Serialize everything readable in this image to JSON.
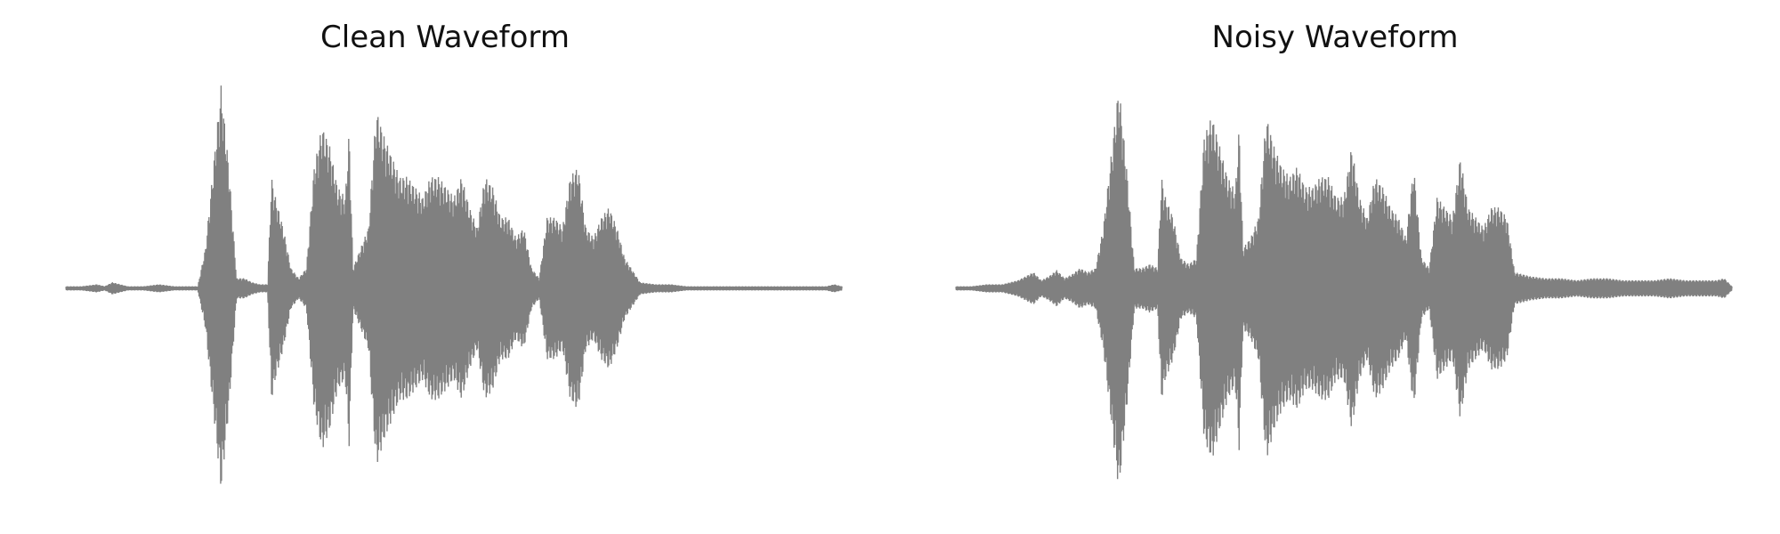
{
  "chart_data": [
    {
      "type": "area",
      "title": "Clean Waveform",
      "xlabel": "",
      "ylabel": "",
      "axis_visible": false,
      "grid": false,
      "color": "#808080",
      "ylim": [
        -1,
        1
      ],
      "series": [
        {
          "x": [
            0.0,
            0.02,
            0.04,
            0.05,
            0.06,
            0.08,
            0.1,
            0.12,
            0.14,
            0.16,
            0.17,
            0.18,
            0.19,
            0.2,
            0.21,
            0.22,
            0.23,
            0.24,
            0.25,
            0.26,
            0.265,
            0.27,
            0.28,
            0.29,
            0.3,
            0.31,
            0.32,
            0.33,
            0.34,
            0.35,
            0.36,
            0.365,
            0.37,
            0.38,
            0.39,
            0.4,
            0.41,
            0.42,
            0.43,
            0.44,
            0.45,
            0.46,
            0.47,
            0.48,
            0.49,
            0.5,
            0.51,
            0.52,
            0.53,
            0.54,
            0.55,
            0.56,
            0.57,
            0.58,
            0.59,
            0.6,
            0.61,
            0.62,
            0.63,
            0.64,
            0.65,
            0.66,
            0.67,
            0.68,
            0.69,
            0.7,
            0.71,
            0.72,
            0.74,
            0.76,
            0.78,
            0.8,
            0.82,
            0.84,
            0.86,
            0.88,
            0.9,
            0.92,
            0.94,
            0.96,
            0.98,
            0.99,
            1.0
          ],
          "envelope": [
            0.01,
            0.01,
            0.02,
            0.01,
            0.03,
            0.01,
            0.01,
            0.02,
            0.01,
            0.01,
            0.01,
            0.2,
            0.6,
            1.0,
            0.6,
            0.05,
            0.05,
            0.03,
            0.02,
            0.02,
            0.55,
            0.45,
            0.3,
            0.1,
            0.05,
            0.1,
            0.6,
            0.8,
            0.7,
            0.5,
            0.45,
            0.78,
            0.1,
            0.2,
            0.3,
            0.88,
            0.75,
            0.65,
            0.55,
            0.55,
            0.5,
            0.45,
            0.55,
            0.55,
            0.5,
            0.45,
            0.55,
            0.4,
            0.3,
            0.55,
            0.5,
            0.35,
            0.35,
            0.25,
            0.3,
            0.1,
            0.05,
            0.35,
            0.35,
            0.3,
            0.55,
            0.6,
            0.3,
            0.25,
            0.35,
            0.4,
            0.3,
            0.15,
            0.03,
            0.02,
            0.02,
            0.01,
            0.01,
            0.01,
            0.01,
            0.01,
            0.01,
            0.01,
            0.01,
            0.01,
            0.01,
            0.02,
            0.01
          ]
        }
      ]
    },
    {
      "type": "area",
      "title": "Noisy Waveform",
      "xlabel": "",
      "ylabel": "",
      "axis_visible": false,
      "grid": false,
      "color": "#808080",
      "ylim": [
        -1,
        1
      ],
      "series": [
        {
          "x": [
            0.0,
            0.02,
            0.04,
            0.06,
            0.08,
            0.09,
            0.1,
            0.11,
            0.12,
            0.13,
            0.14,
            0.15,
            0.16,
            0.17,
            0.18,
            0.19,
            0.2,
            0.21,
            0.22,
            0.23,
            0.24,
            0.25,
            0.26,
            0.265,
            0.27,
            0.28,
            0.29,
            0.3,
            0.31,
            0.32,
            0.33,
            0.34,
            0.35,
            0.36,
            0.365,
            0.37,
            0.38,
            0.39,
            0.4,
            0.41,
            0.42,
            0.43,
            0.44,
            0.45,
            0.46,
            0.47,
            0.48,
            0.49,
            0.5,
            0.51,
            0.52,
            0.53,
            0.54,
            0.55,
            0.56,
            0.57,
            0.58,
            0.59,
            0.6,
            0.61,
            0.62,
            0.63,
            0.64,
            0.65,
            0.66,
            0.67,
            0.68,
            0.69,
            0.7,
            0.71,
            0.72,
            0.74,
            0.76,
            0.78,
            0.8,
            0.82,
            0.84,
            0.86,
            0.88,
            0.9,
            0.92,
            0.94,
            0.96,
            0.98,
            0.99,
            1.0
          ],
          "envelope": [
            0.01,
            0.01,
            0.02,
            0.02,
            0.04,
            0.06,
            0.08,
            0.04,
            0.06,
            0.09,
            0.05,
            0.07,
            0.1,
            0.08,
            0.1,
            0.3,
            0.65,
            1.0,
            0.6,
            0.1,
            0.1,
            0.12,
            0.1,
            0.55,
            0.45,
            0.35,
            0.15,
            0.12,
            0.15,
            0.75,
            0.85,
            0.7,
            0.55,
            0.48,
            0.8,
            0.2,
            0.25,
            0.35,
            0.85,
            0.7,
            0.6,
            0.55,
            0.6,
            0.5,
            0.5,
            0.55,
            0.55,
            0.45,
            0.45,
            0.7,
            0.45,
            0.35,
            0.55,
            0.5,
            0.4,
            0.35,
            0.25,
            0.6,
            0.15,
            0.1,
            0.45,
            0.4,
            0.35,
            0.65,
            0.4,
            0.35,
            0.3,
            0.4,
            0.4,
            0.35,
            0.08,
            0.06,
            0.05,
            0.05,
            0.04,
            0.05,
            0.05,
            0.04,
            0.04,
            0.04,
            0.05,
            0.04,
            0.04,
            0.04,
            0.05,
            0.01
          ]
        }
      ]
    }
  ]
}
